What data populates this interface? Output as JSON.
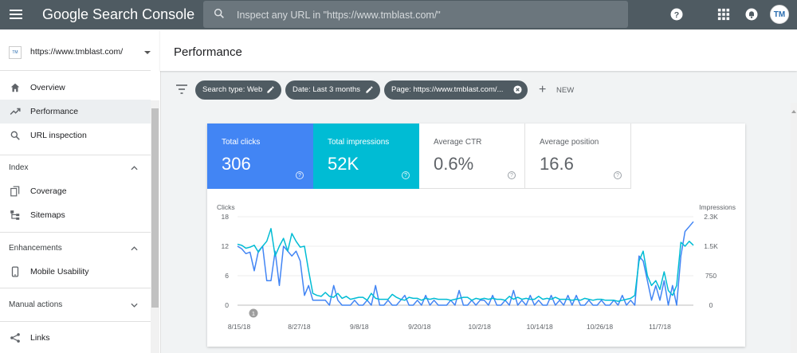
{
  "app": {
    "title": "Google Search Console"
  },
  "search": {
    "placeholder": "Inspect any URL in \"https://www.tmblast.com/\""
  },
  "user": {
    "avatar_initials": "TM"
  },
  "property": {
    "url": "https://www.tmblast.com/",
    "logo_text": "TM"
  },
  "sidebar": {
    "items": [
      {
        "label": "Overview",
        "icon": "home-icon"
      },
      {
        "label": "Performance",
        "icon": "trending-up-icon",
        "active": true
      },
      {
        "label": "URL inspection",
        "icon": "search-icon"
      }
    ],
    "sections": [
      {
        "label": "Index",
        "items": [
          {
            "label": "Coverage",
            "icon": "copy-icon"
          },
          {
            "label": "Sitemaps",
            "icon": "sitemap-icon"
          }
        ]
      },
      {
        "label": "Enhancements",
        "items": [
          {
            "label": "Mobile Usability",
            "icon": "phone-icon"
          }
        ]
      },
      {
        "label": "Manual actions",
        "items": []
      }
    ],
    "links": {
      "label": "Links",
      "icon": "links-icon"
    }
  },
  "page": {
    "title": "Performance"
  },
  "filters": {
    "chips": [
      {
        "label": "Search type: Web"
      },
      {
        "label": "Date: Last 3 months"
      },
      {
        "label": "Page: https://www.tmblast.com/..."
      }
    ],
    "new_label": "NEW"
  },
  "metrics": {
    "clicks": {
      "label": "Total clicks",
      "value": "306"
    },
    "impressions": {
      "label": "Total impressions",
      "value": "52K"
    },
    "ctr": {
      "label": "Average CTR",
      "value": "0.6%"
    },
    "position": {
      "label": "Average position",
      "value": "16.6"
    }
  },
  "colors": {
    "clicks": "#4285f4",
    "impressions": "#00bcd4",
    "topbar": "#4f5b62"
  },
  "chart_data": {
    "type": "line",
    "x_tick_labels": [
      "8/15/18",
      "8/27/18",
      "9/8/18",
      "9/20/18",
      "10/2/18",
      "10/14/18",
      "10/26/18",
      "11/7/18"
    ],
    "left_axis": {
      "label": "Clicks",
      "ticks": [
        "0",
        "6",
        "12",
        "18"
      ],
      "ylim": [
        0,
        18
      ]
    },
    "right_axis": {
      "label": "Impressions",
      "ticks": [
        "0",
        "750",
        "1.5K",
        "2.3K"
      ],
      "ylim": [
        0,
        2250
      ]
    },
    "annotation": "1",
    "series": [
      {
        "name": "Total clicks",
        "axis": "left",
        "color": "#4285f4",
        "values": [
          12,
          11.5,
          10.5,
          10.8,
          7,
          11,
          12,
          5,
          5,
          11,
          4,
          12,
          11,
          10,
          11,
          9,
          2,
          4,
          1,
          1,
          1,
          1,
          0,
          4,
          1,
          0,
          0,
          0,
          1,
          0,
          0,
          1,
          0,
          4,
          0,
          0,
          1,
          0,
          0,
          1,
          2,
          0,
          0,
          1,
          0,
          2,
          0,
          1,
          0,
          0,
          0,
          1,
          0,
          3,
          0,
          0,
          1,
          0,
          1,
          1,
          0,
          2,
          0,
          0,
          1,
          0,
          3,
          0,
          1,
          0,
          2,
          0,
          1,
          0,
          0,
          2,
          0,
          1,
          0,
          2,
          0,
          2,
          0,
          0,
          1,
          0,
          0,
          1,
          0,
          0,
          1,
          0,
          2,
          0,
          1,
          0,
          10,
          9,
          5,
          1,
          4,
          1,
          5,
          0,
          4,
          0,
          10,
          15,
          16,
          17
        ]
      },
      {
        "name": "Total impressions",
        "axis": "right",
        "color": "#00bcd4",
        "values": [
          1550,
          1525,
          1450,
          1475,
          1525,
          1350,
          1500,
          1625,
          1950,
          1250,
          1500,
          1700,
          1375,
          1825,
          1625,
          1475,
          1500,
          875,
          300,
          250,
          225,
          325,
          225,
          200,
          300,
          175,
          225,
          150,
          175,
          200,
          200,
          125,
          300,
          175,
          150,
          150,
          150,
          275,
          200,
          150,
          125,
          200,
          175,
          175,
          125,
          175,
          150,
          175,
          150,
          150,
          150,
          125,
          150,
          175,
          200,
          200,
          125,
          175,
          150,
          175,
          150,
          175,
          150,
          150,
          125,
          225,
          150,
          200,
          150,
          175,
          150,
          150,
          225,
          150,
          175,
          150,
          200,
          150,
          150,
          150,
          125,
          150,
          125,
          175,
          150,
          125,
          150,
          150,
          125,
          125,
          125,
          100,
          125,
          150,
          175,
          250,
          1125,
          1375,
          750,
          500,
          625,
          400,
          850,
          375,
          250,
          500,
          1600,
          1500,
          1625,
          1525
        ]
      }
    ]
  }
}
